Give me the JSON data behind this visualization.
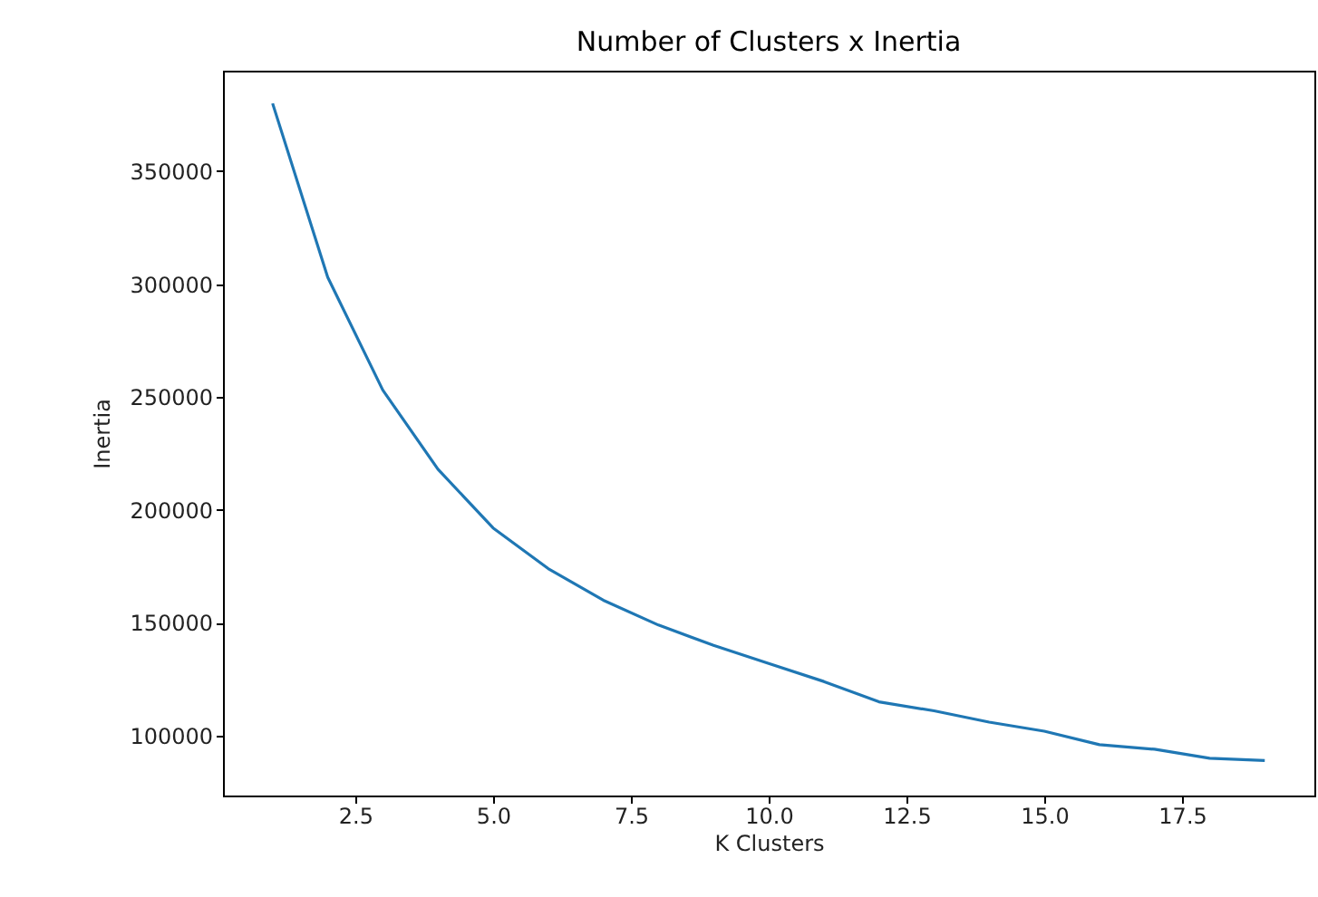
{
  "chart_data": {
    "type": "line",
    "title": "Number of Clusters x Inertia",
    "xlabel": "K Clusters",
    "ylabel": "Inertia",
    "x": [
      1,
      2,
      3,
      4,
      5,
      6,
      7,
      8,
      9,
      10,
      11,
      12,
      13,
      14,
      15,
      16,
      17,
      18,
      19
    ],
    "series": [
      {
        "color": "#1f77b4",
        "values": [
          380000,
          303000,
          253000,
          218000,
          192000,
          174000,
          160000,
          149000,
          140000,
          132000,
          124000,
          115000,
          111000,
          106000,
          102000,
          96000,
          94000,
          90000,
          89000
        ]
      }
    ],
    "xlim": [
      0.1,
      19.9
    ],
    "ylim": [
      73500,
      394500
    ],
    "xticks": [
      {
        "value": 2.5,
        "label": "2.5"
      },
      {
        "value": 5,
        "label": "5.0"
      },
      {
        "value": 7.5,
        "label": "7.5"
      },
      {
        "value": 10,
        "label": "10.0"
      },
      {
        "value": 12.5,
        "label": "12.5"
      },
      {
        "value": 15,
        "label": "15.0"
      },
      {
        "value": 17.5,
        "label": "17.5"
      }
    ],
    "yticks": [
      100000,
      150000,
      200000,
      250000,
      300000,
      350000
    ],
    "grid": false,
    "legend": false,
    "marker": "none",
    "line_style": "solid"
  }
}
